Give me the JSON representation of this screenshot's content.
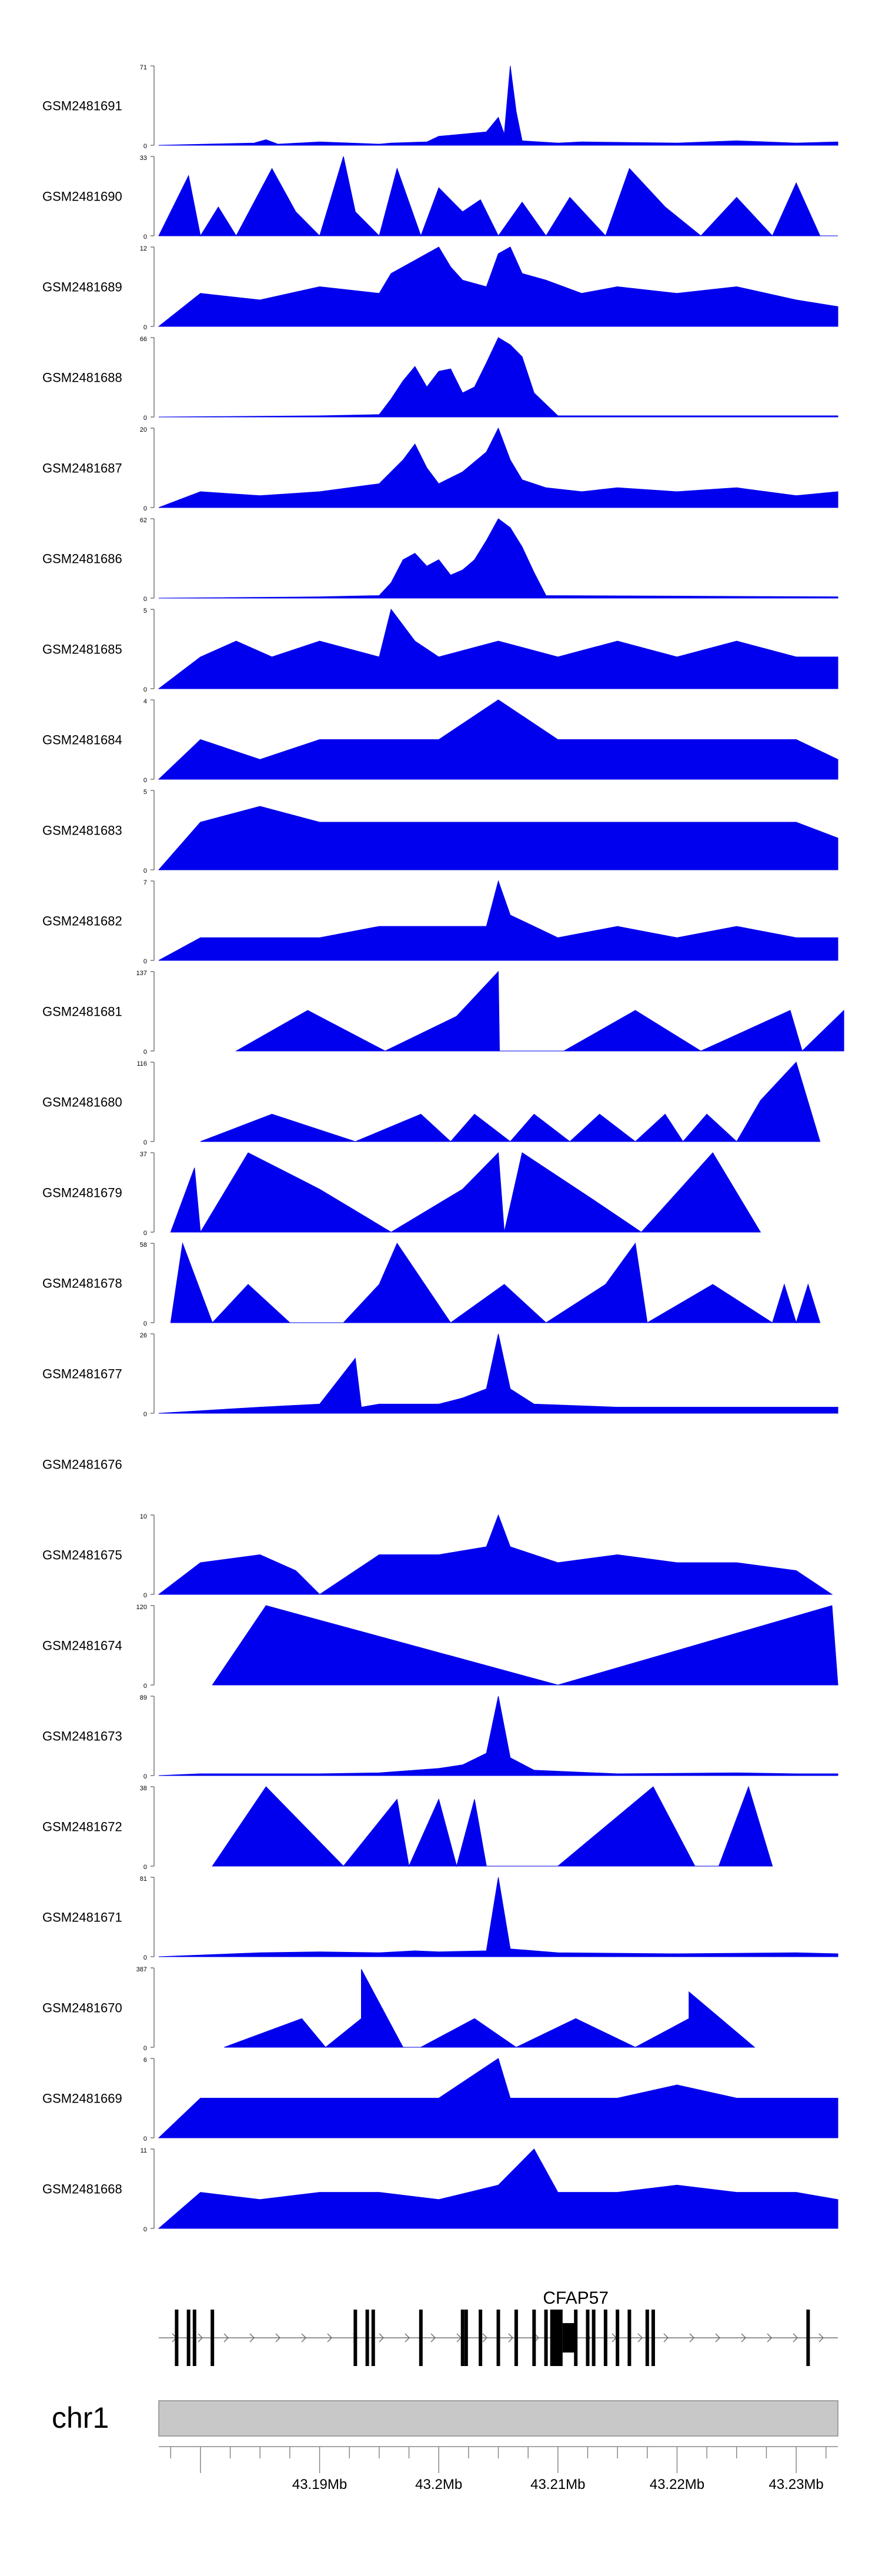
{
  "chart_data": {
    "type": "area",
    "xlabel": "",
    "ylabel": "",
    "xlim": [
      43.1765,
      43.2335
    ],
    "x_unit": "Mb",
    "fill_color": "#0000ee",
    "tracks": [
      {
        "name": "GSM2481691",
        "ymax": "71",
        "ymax_value": 71,
        "x": [
          43.1765,
          43.1845,
          43.1855,
          43.1865,
          43.19,
          43.195,
          43.196,
          43.199,
          43.2,
          43.204,
          43.205,
          43.2055,
          43.206,
          43.2065,
          43.207,
          43.21,
          43.212,
          43.22,
          43.225,
          43.23,
          43.2335
        ],
        "y": [
          0,
          2,
          5,
          1,
          3,
          1,
          2,
          3,
          8,
          12,
          25,
          10,
          71,
          30,
          4,
          2,
          3,
          2,
          4,
          2,
          3
        ]
      },
      {
        "name": "GSM2481690",
        "ymax": "33",
        "ymax_value": 33,
        "x": [
          43.1765,
          43.179,
          43.18,
          43.1815,
          43.183,
          43.186,
          43.188,
          43.19,
          43.192,
          43.193,
          43.195,
          43.1965,
          43.1985,
          43.2,
          43.202,
          43.2035,
          43.205,
          43.207,
          43.209,
          43.211,
          43.214,
          43.216,
          43.219,
          43.222,
          43.225,
          43.228,
          43.23,
          43.232,
          43.2335
        ],
        "y": [
          0,
          25,
          0,
          12,
          0,
          28,
          10,
          0,
          33,
          10,
          0,
          28,
          0,
          20,
          10,
          15,
          0,
          14,
          0,
          16,
          0,
          28,
          12,
          0,
          16,
          0,
          22,
          0,
          0
        ]
      },
      {
        "name": "GSM2481689",
        "ymax": "12",
        "ymax_value": 12,
        "x": [
          43.1765,
          43.18,
          43.185,
          43.19,
          43.195,
          43.196,
          43.198,
          43.199,
          43.2,
          43.201,
          43.202,
          43.204,
          43.205,
          43.206,
          43.207,
          43.209,
          43.212,
          43.215,
          43.22,
          43.225,
          43.23,
          43.2335
        ],
        "y": [
          0,
          5,
          4,
          6,
          5,
          8,
          10,
          11,
          12,
          9,
          7,
          6,
          11,
          12,
          8,
          7,
          5,
          6,
          5,
          6,
          4,
          3
        ]
      },
      {
        "name": "GSM2481688",
        "ymax": "66",
        "ymax_value": 66,
        "x": [
          43.1765,
          43.19,
          43.195,
          43.196,
          43.197,
          43.198,
          43.199,
          43.2,
          43.201,
          43.202,
          43.203,
          43.204,
          43.205,
          43.206,
          43.207,
          43.208,
          43.21,
          43.2335
        ],
        "y": [
          0,
          1,
          2,
          15,
          30,
          42,
          25,
          38,
          40,
          20,
          25,
          45,
          66,
          60,
          50,
          20,
          1,
          1
        ]
      },
      {
        "name": "GSM2481687",
        "ymax": "20",
        "ymax_value": 20,
        "x": [
          43.1765,
          43.18,
          43.185,
          43.19,
          43.195,
          43.197,
          43.198,
          43.199,
          43.2,
          43.202,
          43.204,
          43.205,
          43.206,
          43.207,
          43.209,
          43.212,
          43.215,
          43.22,
          43.225,
          43.23,
          43.2335
        ],
        "y": [
          0,
          4,
          3,
          4,
          6,
          12,
          16,
          10,
          6,
          9,
          14,
          20,
          12,
          7,
          5,
          4,
          5,
          4,
          5,
          3,
          4
        ]
      },
      {
        "name": "GSM2481686",
        "ymax": "62",
        "ymax_value": 62,
        "x": [
          43.1765,
          43.19,
          43.195,
          43.196,
          43.197,
          43.198,
          43.199,
          43.2,
          43.201,
          43.202,
          43.203,
          43.204,
          43.205,
          43.206,
          43.207,
          43.208,
          43.209,
          43.2335
        ],
        "y": [
          0,
          1,
          2,
          12,
          30,
          35,
          25,
          30,
          18,
          22,
          30,
          45,
          62,
          55,
          40,
          20,
          2,
          1
        ]
      },
      {
        "name": "GSM2481685",
        "ymax": "5",
        "ymax_value": 5,
        "x": [
          43.1765,
          43.18,
          43.183,
          43.186,
          43.19,
          43.195,
          43.196,
          43.198,
          43.2,
          43.205,
          43.21,
          43.215,
          43.22,
          43.225,
          43.23,
          43.2335
        ],
        "y": [
          0,
          2,
          3,
          2,
          3,
          2,
          5,
          3,
          2,
          3,
          2,
          3,
          2,
          3,
          2,
          2
        ]
      },
      {
        "name": "GSM2481684",
        "ymax": "4",
        "ymax_value": 4,
        "x": [
          43.1765,
          43.18,
          43.185,
          43.19,
          43.195,
          43.2,
          43.205,
          43.21,
          43.215,
          43.22,
          43.225,
          43.23,
          43.2335
        ],
        "y": [
          0,
          2,
          1,
          2,
          2,
          2,
          4,
          2,
          2,
          2,
          2,
          2,
          1
        ]
      },
      {
        "name": "GSM2481683",
        "ymax": "5",
        "ymax_value": 5,
        "x": [
          43.1765,
          43.18,
          43.185,
          43.19,
          43.195,
          43.2,
          43.205,
          43.21,
          43.215,
          43.22,
          43.225,
          43.23,
          43.2335
        ],
        "y": [
          0,
          3,
          4,
          3,
          3,
          3,
          3,
          3,
          3,
          3,
          3,
          3,
          2
        ]
      },
      {
        "name": "GSM2481682",
        "ymax": "7",
        "ymax_value": 7,
        "x": [
          43.1765,
          43.18,
          43.185,
          43.19,
          43.195,
          43.2,
          43.204,
          43.205,
          43.206,
          43.21,
          43.215,
          43.22,
          43.225,
          43.23,
          43.2335
        ],
        "y": [
          0,
          2,
          2,
          2,
          3,
          3,
          3,
          7,
          4,
          2,
          3,
          2,
          3,
          2,
          2
        ]
      },
      {
        "name": "GSM2481681",
        "ymax": "137",
        "ymax_value": 137,
        "x": [
          43.183,
          43.189,
          43.1955,
          43.2015,
          43.205,
          43.2051,
          43.2105,
          43.2165,
          43.222,
          43.2295,
          43.2305,
          43.234
        ],
        "y": [
          0,
          70,
          0,
          60,
          137,
          0,
          0,
          70,
          0,
          70,
          0,
          70
        ]
      },
      {
        "name": "GSM2481680",
        "ymax": "116",
        "ymax_value": 116,
        "x": [
          43.18,
          43.186,
          43.193,
          43.1985,
          43.201,
          43.203,
          43.206,
          43.208,
          43.211,
          43.2135,
          43.2165,
          43.219,
          43.2205,
          43.2225,
          43.225,
          43.227,
          43.23,
          43.232
        ],
        "y": [
          0,
          40,
          0,
          40,
          0,
          40,
          0,
          40,
          0,
          40,
          0,
          40,
          0,
          40,
          0,
          60,
          116,
          0
        ]
      },
      {
        "name": "GSM2481679",
        "ymax": "37",
        "ymax_value": 37,
        "x": [
          43.1775,
          43.1795,
          43.18,
          43.184,
          43.19,
          43.196,
          43.202,
          43.205,
          43.2055,
          43.207,
          43.213,
          43.217,
          43.223,
          43.227
        ],
        "y": [
          0,
          30,
          0,
          37,
          20,
          0,
          20,
          37,
          0,
          37,
          15,
          0,
          37,
          0
        ]
      },
      {
        "name": "GSM2481678",
        "ymax": "58",
        "ymax_value": 58,
        "x": [
          43.1775,
          43.1785,
          43.181,
          43.184,
          43.1875,
          43.192,
          43.195,
          43.1965,
          43.201,
          43.2055,
          43.209,
          43.214,
          43.2165,
          43.2175,
          43.223,
          43.228,
          43.229,
          43.23,
          43.231,
          43.232
        ],
        "y": [
          0,
          58,
          0,
          28,
          0,
          0,
          28,
          58,
          0,
          28,
          0,
          28,
          58,
          0,
          28,
          0,
          28,
          0,
          28,
          0
        ]
      },
      {
        "name": "GSM2481677",
        "ymax": "26",
        "ymax_value": 26,
        "x": [
          43.1765,
          43.185,
          43.19,
          43.193,
          43.1935,
          43.195,
          43.2,
          43.202,
          43.204,
          43.205,
          43.206,
          43.208,
          43.215,
          43.22,
          43.2335
        ],
        "y": [
          0,
          2,
          3,
          18,
          2,
          3,
          3,
          5,
          8,
          26,
          8,
          3,
          2,
          2,
          2
        ]
      },
      {
        "name": "GSM2481676",
        "ymax": "",
        "ymax_value": 0,
        "x": [],
        "y": []
      },
      {
        "name": "GSM2481675",
        "ymax": "10",
        "ymax_value": 10,
        "x": [
          43.1765,
          43.18,
          43.185,
          43.188,
          43.19,
          43.195,
          43.2,
          43.204,
          43.205,
          43.206,
          43.21,
          43.215,
          43.22,
          43.225,
          43.23,
          43.233
        ],
        "y": [
          0,
          4,
          5,
          3,
          0,
          5,
          5,
          6,
          10,
          6,
          4,
          5,
          4,
          4,
          3,
          0
        ]
      },
      {
        "name": "GSM2481674",
        "ymax": "120",
        "ymax_value": 120,
        "x": [
          43.181,
          43.1855,
          43.21,
          43.233,
          43.2335
        ],
        "y": [
          0,
          120,
          0,
          120,
          0
        ]
      },
      {
        "name": "GSM2481673",
        "ymax": "89",
        "ymax_value": 89,
        "x": [
          43.1765,
          43.18,
          43.19,
          43.195,
          43.2,
          43.202,
          43.204,
          43.205,
          43.206,
          43.208,
          43.215,
          43.225,
          43.23,
          43.2335
        ],
        "y": [
          0,
          2,
          2,
          3,
          8,
          12,
          25,
          89,
          20,
          6,
          2,
          3,
          2,
          2
        ]
      },
      {
        "name": "GSM2481672",
        "ymax": "38",
        "ymax_value": 38,
        "x": [
          43.181,
          43.1855,
          43.192,
          43.1965,
          43.1975,
          43.2,
          43.2015,
          43.203,
          43.204,
          43.21,
          43.218,
          43.2215,
          43.2235,
          43.226,
          43.228
        ],
        "y": [
          0,
          38,
          0,
          32,
          0,
          32,
          0,
          32,
          0,
          0,
          38,
          0,
          0,
          38,
          0
        ]
      },
      {
        "name": "GSM2481671",
        "ymax": "81",
        "ymax_value": 81,
        "x": [
          43.1765,
          43.185,
          43.19,
          43.195,
          43.198,
          43.2,
          43.204,
          43.205,
          43.206,
          43.21,
          43.22,
          43.23,
          43.2335
        ],
        "y": [
          0,
          4,
          5,
          4,
          6,
          5,
          6,
          81,
          8,
          4,
          3,
          4,
          3
        ]
      },
      {
        "name": "GSM2481670",
        "ymax": "387",
        "ymax_value": 387,
        "x": [
          43.182,
          43.1885,
          43.1905,
          43.1935,
          43.1935,
          43.197,
          43.1985,
          43.203,
          43.2065,
          43.2115,
          43.2165,
          43.221,
          43.221,
          43.2265
        ],
        "y": [
          0,
          140,
          0,
          140,
          380,
          0,
          0,
          140,
          0,
          140,
          0,
          140,
          270,
          0
        ]
      },
      {
        "name": "GSM2481669",
        "ymax": "6",
        "ymax_value": 6,
        "x": [
          43.1765,
          43.18,
          43.185,
          43.19,
          43.195,
          43.2,
          43.205,
          43.206,
          43.21,
          43.215,
          43.22,
          43.225,
          43.23,
          43.2335
        ],
        "y": [
          0,
          3,
          3,
          3,
          3,
          3,
          6,
          3,
          3,
          3,
          4,
          3,
          3,
          3
        ]
      },
      {
        "name": "GSM2481668",
        "ymax": "11",
        "ymax_value": 11,
        "x": [
          43.1765,
          43.18,
          43.185,
          43.19,
          43.195,
          43.2,
          43.205,
          43.208,
          43.21,
          43.215,
          43.22,
          43.225,
          43.23,
          43.2335
        ],
        "y": [
          0,
          5,
          4,
          5,
          5,
          4,
          6,
          11,
          5,
          5,
          6,
          5,
          5,
          4
        ]
      }
    ],
    "gene": {
      "name": "CFAP57",
      "exons": [
        43.178,
        43.179,
        43.1795,
        43.181,
        43.193,
        43.194,
        43.1945,
        43.1985,
        43.202,
        43.2023,
        43.2035,
        43.205,
        43.2065,
        43.208,
        43.209,
        43.2095,
        43.21,
        43.2115,
        43.2125,
        43.213,
        43.214,
        43.215,
        43.216,
        43.2175,
        43.218,
        43.231
      ]
    },
    "chromosome": "chr1",
    "x_ticks": [
      "43.19Mb",
      "43.2Mb",
      "43.21Mb",
      "43.22Mb",
      "43.23Mb"
    ],
    "x_tick_values": [
      43.19,
      43.2,
      43.21,
      43.22,
      43.23
    ]
  }
}
